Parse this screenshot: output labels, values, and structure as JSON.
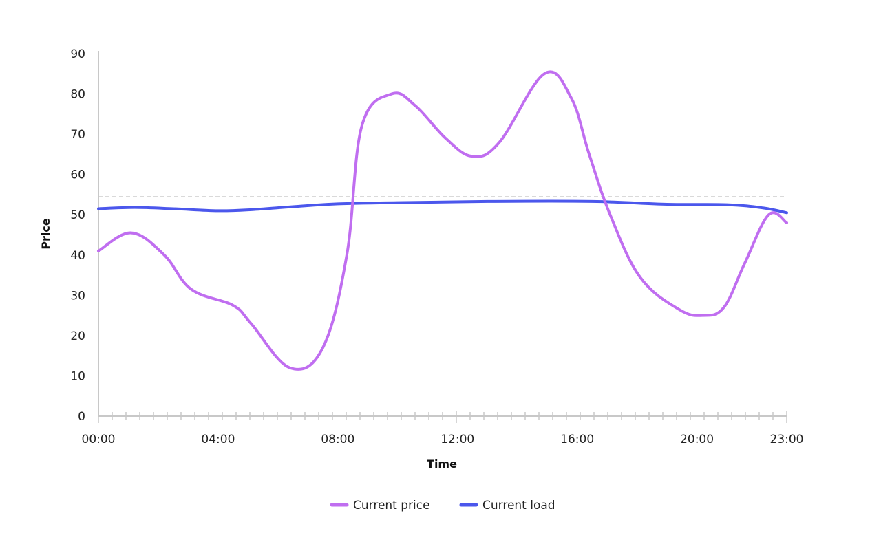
{
  "chart_data": {
    "type": "line",
    "xlabel": "Time",
    "ylabel": "Price",
    "ylim": [
      0,
      90
    ],
    "y_ticks": [
      0,
      10,
      20,
      30,
      40,
      50,
      60,
      70,
      80,
      90
    ],
    "x_hours_range": [
      0,
      23
    ],
    "x_tick_labels": [
      {
        "hour": 0,
        "label": "00:00"
      },
      {
        "hour": 4,
        "label": "04:00"
      },
      {
        "hour": 8,
        "label": "08:00"
      },
      {
        "hour": 12,
        "label": "12:00"
      },
      {
        "hour": 16,
        "label": "16:00"
      },
      {
        "hour": 20,
        "label": "20:00"
      },
      {
        "hour": 23,
        "label": "23:00"
      }
    ],
    "reference_line": {
      "y": 54.5,
      "style": "dashed"
    },
    "legend_position": "bottom-center",
    "series": [
      {
        "name": "Current price",
        "color": "#c06ef0",
        "points": [
          [
            0,
            41
          ],
          [
            1.1,
            45.5
          ],
          [
            2.2,
            40
          ],
          [
            3.1,
            31.5
          ],
          [
            4.5,
            27.5
          ],
          [
            5.1,
            23
          ],
          [
            6.4,
            12
          ],
          [
            7.5,
            17
          ],
          [
            8.3,
            40
          ],
          [
            8.8,
            72
          ],
          [
            9.8,
            80
          ],
          [
            10.6,
            77
          ],
          [
            11.6,
            69
          ],
          [
            12.5,
            64.5
          ],
          [
            13.4,
            68
          ],
          [
            14.9,
            85
          ],
          [
            15.8,
            79
          ],
          [
            16.4,
            65
          ],
          [
            17.1,
            50
          ],
          [
            18.1,
            34.5
          ],
          [
            19.4,
            26.5
          ],
          [
            20.2,
            25
          ],
          [
            20.9,
            27
          ],
          [
            21.6,
            38
          ],
          [
            22.4,
            50
          ],
          [
            23,
            48
          ]
        ]
      },
      {
        "name": "Current load",
        "color": "#4b57ec",
        "points": [
          [
            0,
            51.5
          ],
          [
            1.2,
            51.8
          ],
          [
            2.5,
            51.5
          ],
          [
            4,
            51
          ],
          [
            5.2,
            51.3
          ],
          [
            6.5,
            52
          ],
          [
            8,
            52.7
          ],
          [
            10,
            53
          ],
          [
            13,
            53.3
          ],
          [
            16.5,
            53.3
          ],
          [
            19,
            52.6
          ],
          [
            21,
            52.5
          ],
          [
            22.2,
            51.7
          ],
          [
            23,
            50.5
          ]
        ]
      }
    ]
  }
}
